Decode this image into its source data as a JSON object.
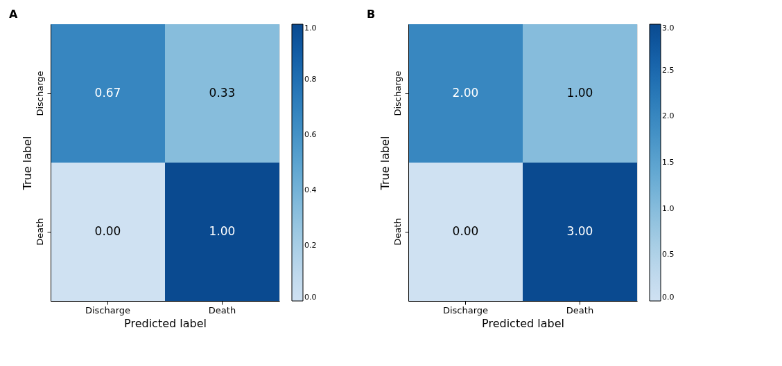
{
  "chart_data": [
    {
      "type": "heatmap",
      "title": "A",
      "xlabel": "Predicted label",
      "ylabel": "True label",
      "categories": [
        "Discharge",
        "Death"
      ],
      "y_categories": [
        "Discharge",
        "Death"
      ],
      "cells": [
        [
          0.67,
          0.33
        ],
        [
          0.0,
          1.0
        ]
      ],
      "cell_labels": [
        [
          "0.67",
          "0.33"
        ],
        [
          "0.00",
          "1.00"
        ]
      ],
      "clim": [
        0,
        1
      ],
      "cticks": [
        {
          "value": 0,
          "label": "0.0"
        },
        {
          "value": 0.2,
          "label": "0.2"
        },
        {
          "value": 0.4,
          "label": "0.4"
        },
        {
          "value": 0.6,
          "label": "0.6"
        },
        {
          "value": 0.8,
          "label": "0.8"
        },
        {
          "value": 1,
          "label": "1.0"
        }
      ]
    },
    {
      "type": "heatmap",
      "title": "B",
      "xlabel": "Predicted label",
      "ylabel": "True label",
      "categories": [
        "Discharge",
        "Death"
      ],
      "y_categories": [
        "Discharge",
        "Death"
      ],
      "cells": [
        [
          2,
          1
        ],
        [
          0,
          3
        ]
      ],
      "cell_labels": [
        [
          "2.00",
          "1.00"
        ],
        [
          "0.00",
          "3.00"
        ]
      ],
      "clim": [
        0,
        3
      ],
      "cticks": [
        {
          "value": 0,
          "label": "0.0"
        },
        {
          "value": 0.5,
          "label": "0.5"
        },
        {
          "value": 1,
          "label": "1.0"
        },
        {
          "value": 1.5,
          "label": "1.5"
        },
        {
          "value": 2,
          "label": "2.0"
        },
        {
          "value": 2.5,
          "label": "2.5"
        },
        {
          "value": 3,
          "label": "3.0"
        }
      ]
    }
  ]
}
